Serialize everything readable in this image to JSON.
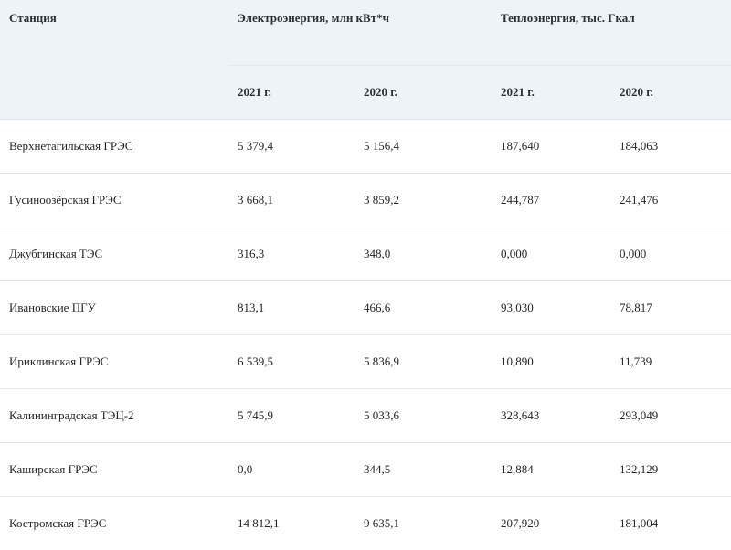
{
  "headers": {
    "station": "Станция",
    "electricity": "Электроэнергия, млн кВт*ч",
    "heat": "Теплоэнергия, тыс. Гкал",
    "years": [
      "2021 г.",
      "2020 г.",
      "2021 г.",
      "2020 г."
    ]
  },
  "rows": [
    {
      "station": "Верхнетагильская ГРЭС",
      "el2021": "5 379,4",
      "el2020": "5 156,4",
      "heat2021": "187,640",
      "heat2020": "184,063"
    },
    {
      "station": "Гусиноозёрская ГРЭС",
      "el2021": "3 668,1",
      "el2020": "3 859,2",
      "heat2021": "244,787",
      "heat2020": "241,476"
    },
    {
      "station": "Джубгинская ТЭС",
      "el2021": "316,3",
      "el2020": "348,0",
      "heat2021": "0,000",
      "heat2020": "0,000"
    },
    {
      "station": "Ивановские ПГУ",
      "el2021": "813,1",
      "el2020": "466,6",
      "heat2021": "93,030",
      "heat2020": "78,817"
    },
    {
      "station": "Ириклинская ГРЭС",
      "el2021": "6 539,5",
      "el2020": "5 836,9",
      "heat2021": "10,890",
      "heat2020": "11,739"
    },
    {
      "station": "Калининградская ТЭЦ-2",
      "el2021": "5 745,9",
      "el2020": "5 033,6",
      "heat2021": "328,643",
      "heat2020": "293,049"
    },
    {
      "station": "Каширская ГРЭС",
      "el2021": "0,0",
      "el2020": "344,5",
      "heat2021": "12,884",
      "heat2020": "132,129"
    },
    {
      "station": "Костромская ГРЭС",
      "el2021": "14 812,1",
      "el2020": "9 635,1",
      "heat2021": "207,920",
      "heat2020": "181,004"
    }
  ]
}
